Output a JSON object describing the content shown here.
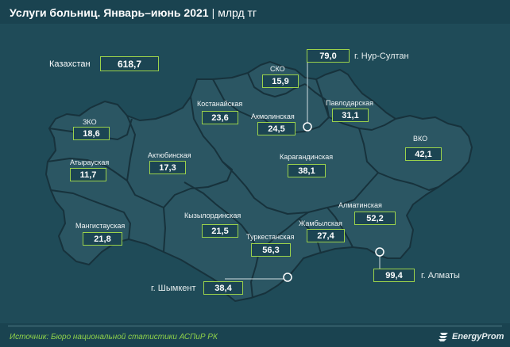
{
  "header": {
    "title": "Услуги больниц. Январь–июнь 2021",
    "separator": "|",
    "unit": "млрд тг"
  },
  "total": {
    "label": "Казахстан",
    "value": "618,7"
  },
  "regions": [
    {
      "key": "zko",
      "name": "ЗКО",
      "value": "18,6"
    },
    {
      "key": "atyrau",
      "name": "Атырауская",
      "value": "11,7"
    },
    {
      "key": "mangystau",
      "name": "Мангистауская",
      "value": "21,8"
    },
    {
      "key": "aktobe",
      "name": "Актюбинская",
      "value": "17,3"
    },
    {
      "key": "kostanay",
      "name": "Костанайская",
      "value": "23,6"
    },
    {
      "key": "sko",
      "name": "СКО",
      "value": "15,9"
    },
    {
      "key": "akmola",
      "name": "Акмолинская",
      "value": "24,5"
    },
    {
      "key": "pavlodar",
      "name": "Павлодарская",
      "value": "31,1"
    },
    {
      "key": "vko",
      "name": "ВКО",
      "value": "42,1"
    },
    {
      "key": "karaganda",
      "name": "Карагандинская",
      "value": "38,1"
    },
    {
      "key": "kyzylorda",
      "name": "Кызылординская",
      "value": "21,5"
    },
    {
      "key": "turkestan",
      "name": "Туркестанская",
      "value": "56,3"
    },
    {
      "key": "zhambyl",
      "name": "Жамбылская",
      "value": "27,4"
    },
    {
      "key": "almaty_obl",
      "name": "Алматинская",
      "value": "52,2"
    }
  ],
  "cities": [
    {
      "key": "nur_sultan",
      "name": "г. Нур-Султан",
      "value": "79,0"
    },
    {
      "key": "almaty",
      "name": "г. Алматы",
      "value": "99,4"
    },
    {
      "key": "shymkent",
      "name": "г. Шымкент",
      "value": "38,4"
    }
  ],
  "footer": {
    "source": "Источник: Бюро национальной статистики АСПиР РК",
    "brand": "EnergyProm"
  },
  "colors": {
    "background": "#1f4b58",
    "map_fill": "#2b5663",
    "region_border": "#17323c",
    "value_border": "#9bd24b",
    "source_text": "#8fd24a"
  }
}
